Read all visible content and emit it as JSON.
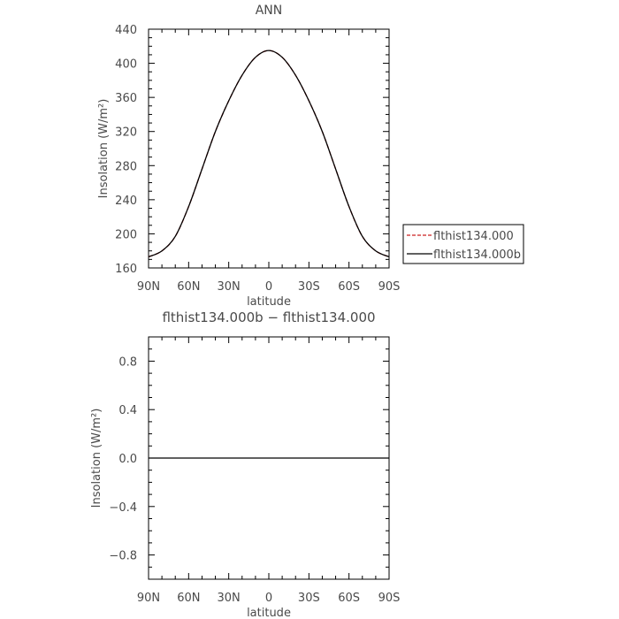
{
  "chart_data": [
    {
      "type": "line",
      "title": "ANN",
      "xlabel": "latitude",
      "ylabel": "Insolation (W/m²)",
      "x_tick_labels": [
        "90N",
        "60N",
        "30N",
        "0",
        "30S",
        "60S",
        "90S"
      ],
      "x_ticks": [
        90,
        60,
        30,
        0,
        -30,
        -60,
        -90
      ],
      "xlim": [
        90,
        -90
      ],
      "ylim": [
        160,
        440
      ],
      "y_ticks": [
        160,
        200,
        240,
        280,
        320,
        360,
        400,
        440
      ],
      "y_tick_labels": [
        "160",
        "200",
        "240",
        "280",
        "320",
        "360",
        "400",
        "440"
      ],
      "x": [
        90,
        80,
        70,
        60,
        50,
        40,
        30,
        20,
        10,
        0,
        -10,
        -20,
        -30,
        -40,
        -50,
        -60,
        -70,
        -80,
        -90
      ],
      "series": [
        {
          "name": "flthist134.000",
          "color": "#cc2222",
          "dash": "dashed",
          "values": [
            173,
            180,
            197,
            232,
            276,
            320,
            356,
            386,
            407,
            415,
            407,
            386,
            356,
            320,
            276,
            232,
            197,
            180,
            173
          ]
        },
        {
          "name": "flthist134.000b",
          "color": "#000000",
          "dash": "solid",
          "values": [
            173,
            180,
            197,
            232,
            276,
            320,
            356,
            386,
            407,
            415,
            407,
            386,
            356,
            320,
            276,
            232,
            197,
            180,
            173
          ]
        }
      ],
      "legend": {
        "placement": "right",
        "entries": [
          "flthist134.000",
          "flthist134.000b"
        ]
      }
    },
    {
      "type": "line",
      "title": "flthist134.000b − flthist134.000",
      "xlabel": "latitude",
      "ylabel": "Insolation (W/m²)",
      "x_tick_labels": [
        "90N",
        "60N",
        "30N",
        "0",
        "30S",
        "60S",
        "90S"
      ],
      "x_ticks": [
        90,
        60,
        30,
        0,
        -30,
        -60,
        -90
      ],
      "xlim": [
        90,
        -90
      ],
      "ylim": [
        -1.0,
        1.0
      ],
      "y_ticks": [
        -0.8,
        -0.4,
        0.0,
        0.4,
        0.8
      ],
      "y_tick_labels": [
        "−0.8",
        "−0.4",
        "0.0",
        "0.4",
        "0.8"
      ],
      "x": [
        90,
        0,
        -90
      ],
      "series": [
        {
          "color": "#000000",
          "dash": "solid",
          "values": [
            0,
            0,
            0
          ]
        }
      ]
    }
  ]
}
